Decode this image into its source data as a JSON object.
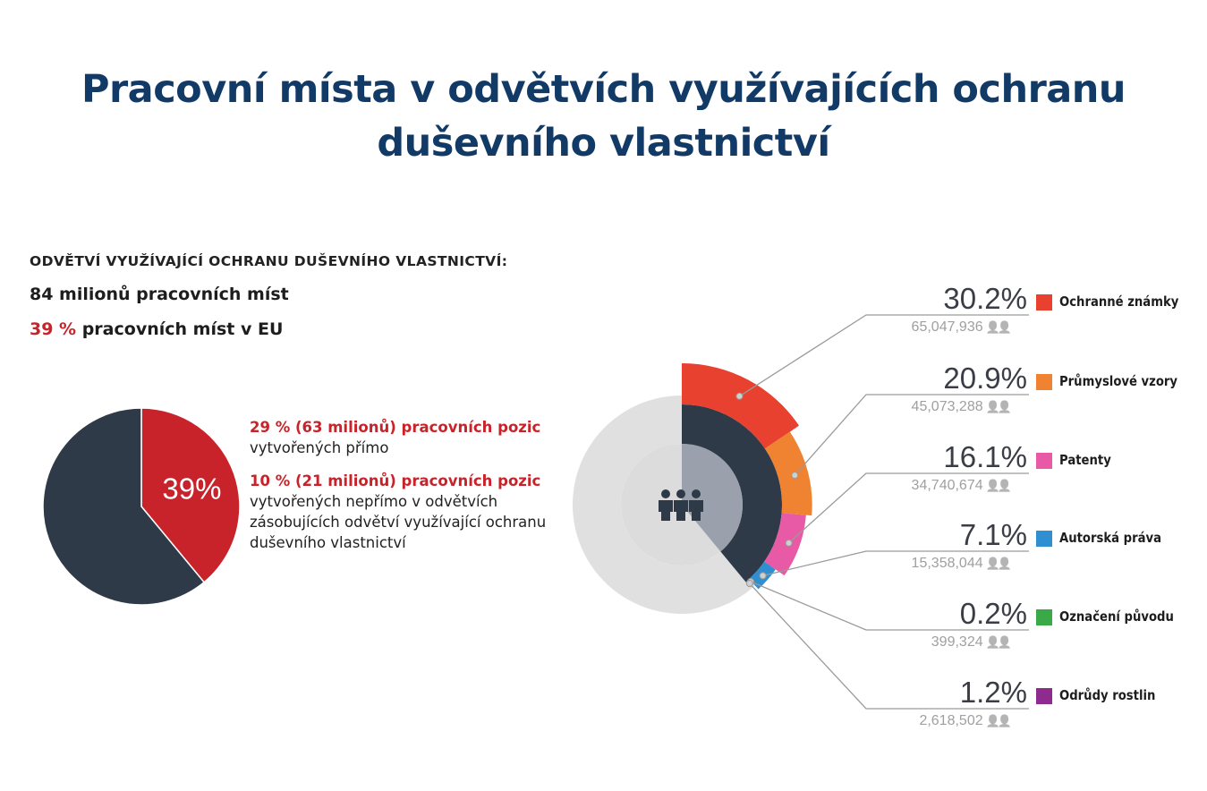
{
  "title_line1": "Pracovní místa v odvětvích využívajících ochranu",
  "title_line2": "duševního vlastnictví",
  "heading": "ODVĚTVÍ VYUŽÍVAJÍCÍ OCHRANU DUŠEVNÍHO VLASTNICTVÍ:",
  "stat_jobs": "84 milionů pracovních míst",
  "stat_share_pct": "39 %",
  "stat_share_text": " pracovních míst v EU",
  "direct_highlight": "29 % (63 milionů) pracovních pozic",
  "direct_text": "vytvořených přímo",
  "indirect_highlight": "10 % (21 milionů) pracovních pozic",
  "indirect_text": "vytvořených nepřímo v odvětvích zásobujících odvětví využívající ochranu duševního vlastnictví",
  "colors": {
    "title": "#123a66",
    "red": "#c8232a",
    "navy": "#2f3a48",
    "grey_ring": "#e0e0e0"
  },
  "chart_data": [
    {
      "type": "pie",
      "slices": [
        {
          "value": 39,
          "label": "39%",
          "color": "#c8232a"
        },
        {
          "value": 61,
          "color": "#2f3a48"
        }
      ]
    },
    {
      "type": "pie",
      "center_icon": "people-group-icon",
      "center_slice": {
        "value": 39,
        "color": "#2f3a48"
      },
      "series": [
        {
          "name": "Ochranné známky",
          "percent": 30.2,
          "percent_label": "30.2%",
          "count": "65,047,936",
          "color": "#e8412f"
        },
        {
          "name": "Průmyslové vzory",
          "percent": 20.9,
          "percent_label": "20.9%",
          "count": "45,073,288",
          "color": "#f08332"
        },
        {
          "name": "Patenty",
          "percent": 16.1,
          "percent_label": "16.1%",
          "count": "34,740,674",
          "color": "#e85aa6"
        },
        {
          "name": "Autorská práva",
          "percent": 7.1,
          "percent_label": "7.1%",
          "count": "15,358,044",
          "color": "#2f8fd0"
        },
        {
          "name": "Označení původu",
          "percent": 0.2,
          "percent_label": "0.2%",
          "count": "399,324",
          "color": "#3aaa48"
        },
        {
          "name": "Odrůdy rostlin",
          "percent": 1.2,
          "percent_label": "1.2%",
          "count": "2,618,502",
          "color": "#8e2b8e"
        }
      ]
    }
  ]
}
